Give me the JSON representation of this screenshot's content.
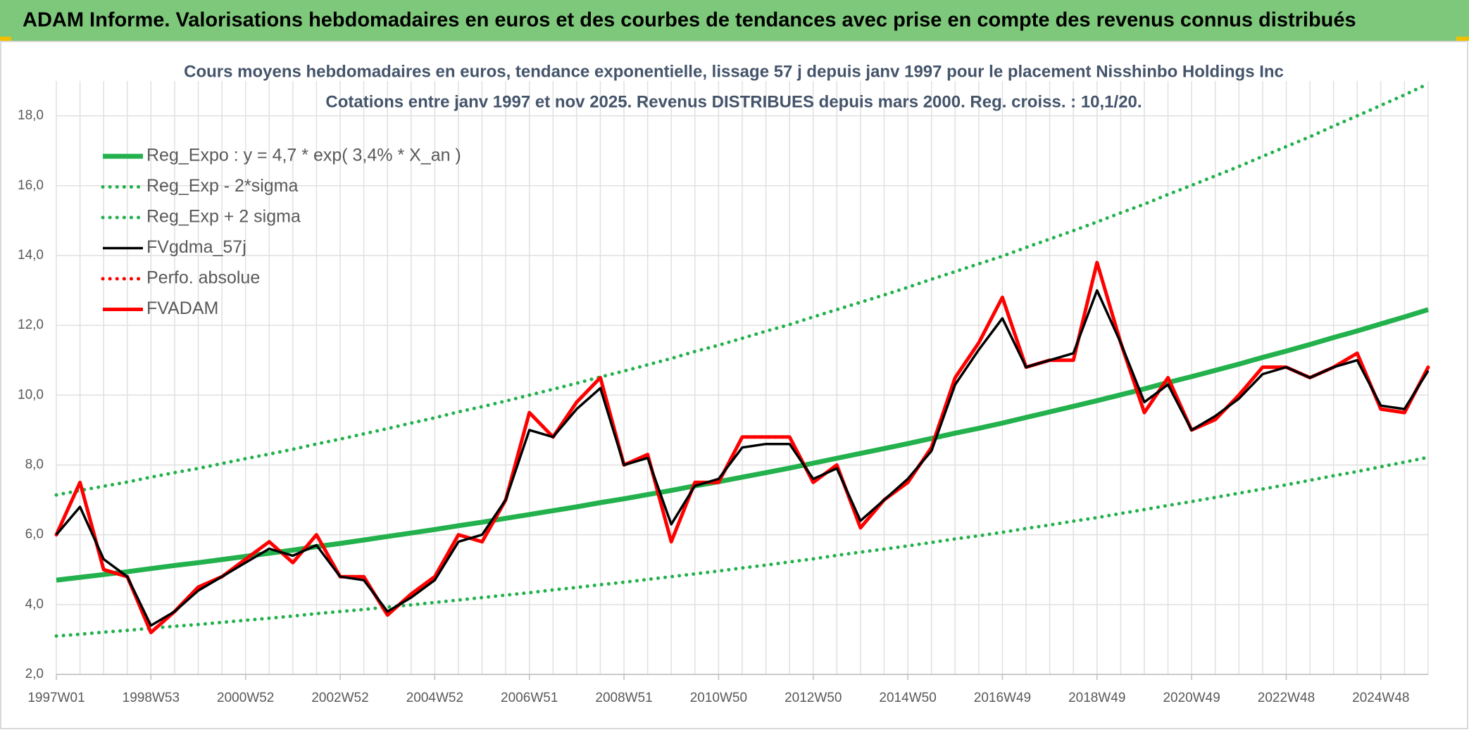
{
  "header": {
    "title": "ADAM Informe. Valorisations hebdomadaires en euros et des courbes de tendances avec prise en compte des revenus connus distribués"
  },
  "chart_data": {
    "type": "line",
    "title": "Cours moyens hebdomadaires en euros, tendance exponentielle, lissage 57 j depuis janv 1997 pour le placement Nisshinbo Holdings Inc",
    "subtitle": "Cotations entre janv 1997 et nov 2025. Revenus DISTRIBUES depuis mars 2000. Reg. croiss. : 10,1/20.",
    "categories": [
      "1997W01",
      null,
      null,
      null,
      "1998W53",
      null,
      null,
      null,
      "2000W52",
      null,
      null,
      null,
      "2002W52",
      null,
      null,
      null,
      "2004W52",
      null,
      null,
      null,
      "2006W51",
      null,
      null,
      null,
      "2008W51",
      null,
      null,
      null,
      "2010W50",
      null,
      null,
      null,
      "2012W50",
      null,
      null,
      null,
      "2014W50",
      null,
      null,
      null,
      "2016W49",
      null,
      null,
      null,
      "2018W49",
      null,
      null,
      null,
      "2020W49",
      null,
      null,
      null,
      "2022W48",
      null,
      null,
      null,
      "2024W48",
      null,
      null
    ],
    "ylim": [
      2,
      19
    ],
    "yticks": [
      {
        "value": 2,
        "label": "2,0"
      },
      {
        "value": 4,
        "label": "4,0"
      },
      {
        "value": 6,
        "label": "6,0"
      },
      {
        "value": 8,
        "label": "8,0"
      },
      {
        "value": 10,
        "label": "10,0"
      },
      {
        "value": 12,
        "label": "12,0"
      },
      {
        "value": 14,
        "label": "14,0"
      },
      {
        "value": 16,
        "label": "16,0"
      },
      {
        "value": 18,
        "label": "18,0"
      }
    ],
    "grid": true,
    "legend": "upper left",
    "series": [
      {
        "name": "Reg_Expo : y = 4,7 * exp( 3,4% *  X_an )",
        "color": "#22b14c",
        "style": "solid",
        "values": [
          4.7,
          4.78,
          4.86,
          4.94,
          5.03,
          5.12,
          5.2,
          5.29,
          5.38,
          5.47,
          5.56,
          5.66,
          5.75,
          5.85,
          5.95,
          6.05,
          6.15,
          6.26,
          6.36,
          6.47,
          6.58,
          6.69,
          6.8,
          6.92,
          7.03,
          7.15,
          7.27,
          7.4,
          7.52,
          7.65,
          7.78,
          7.91,
          8.05,
          8.19,
          8.33,
          8.47,
          8.61,
          8.76,
          8.91,
          9.05,
          9.2,
          9.36,
          9.52,
          9.68,
          9.84,
          10.01,
          10.18,
          10.36,
          10.53,
          10.71,
          10.89,
          11.08,
          11.26,
          11.45,
          11.65,
          11.84,
          12.04,
          12.24,
          12.45
        ]
      },
      {
        "name": "Reg_Exp - 2*sigma",
        "color": "#22b14c",
        "style": "dotted",
        "values": [
          3.1,
          3.15,
          3.21,
          3.26,
          3.32,
          3.38,
          3.43,
          3.49,
          3.55,
          3.61,
          3.67,
          3.74,
          3.8,
          3.86,
          3.93,
          3.99,
          4.06,
          4.13,
          4.2,
          4.27,
          4.34,
          4.42,
          4.49,
          4.57,
          4.64,
          4.72,
          4.8,
          4.88,
          4.96,
          5.05,
          5.13,
          5.22,
          5.31,
          5.41,
          5.5,
          5.59,
          5.68,
          5.78,
          5.88,
          5.97,
          6.07,
          6.18,
          6.28,
          6.39,
          6.49,
          6.61,
          6.72,
          6.84,
          6.95,
          7.07,
          7.19,
          7.31,
          7.43,
          7.56,
          7.69,
          7.81,
          7.95,
          8.08,
          8.22
        ]
      },
      {
        "name": "Reg_Exp + 2 sigma",
        "color": "#22b14c",
        "style": "dotted",
        "values": [
          7.14,
          7.27,
          7.39,
          7.51,
          7.65,
          7.78,
          7.9,
          8.04,
          8.18,
          8.31,
          8.45,
          8.6,
          8.74,
          8.89,
          9.04,
          9.2,
          9.35,
          9.52,
          9.67,
          9.83,
          10.0,
          10.17,
          10.34,
          10.52,
          10.69,
          10.87,
          11.05,
          11.25,
          11.43,
          11.63,
          11.83,
          12.02,
          12.24,
          12.45,
          12.66,
          12.87,
          13.09,
          13.32,
          13.54,
          13.76,
          13.98,
          14.23,
          14.47,
          14.71,
          14.96,
          15.22,
          15.47,
          15.75,
          16.01,
          16.28,
          16.55,
          16.84,
          17.12,
          17.4,
          17.71,
          18.0,
          18.3,
          18.6,
          18.92
        ]
      },
      {
        "name": "FVgdma_57j",
        "color": "#000000",
        "style": "solid",
        "values": [
          6.0,
          6.8,
          5.3,
          4.8,
          3.4,
          3.8,
          4.4,
          4.8,
          5.2,
          5.6,
          5.4,
          5.7,
          4.8,
          4.7,
          3.8,
          4.2,
          4.7,
          5.8,
          6.0,
          7.0,
          9.0,
          8.8,
          9.6,
          10.2,
          8.0,
          8.2,
          6.3,
          7.4,
          7.6,
          8.5,
          8.6,
          8.6,
          7.6,
          7.9,
          6.4,
          7.0,
          7.6,
          8.4,
          10.3,
          11.3,
          12.2,
          10.8,
          11.0,
          11.2,
          13.0,
          11.5,
          9.8,
          10.3,
          9.0,
          9.4,
          9.9,
          10.6,
          10.8,
          10.5,
          10.8,
          11.0,
          9.7,
          9.6,
          10.7
        ]
      },
      {
        "name": "Perfo. absolue",
        "color": "#ff0000",
        "style": "dotted",
        "values": [
          6.0,
          7.5,
          5.0,
          4.8,
          3.2,
          3.8,
          4.5,
          4.8,
          5.3,
          5.8,
          5.2,
          6.0,
          4.8,
          4.8,
          3.7,
          4.3,
          4.8,
          6.0,
          5.8,
          7.0,
          9.5,
          8.8,
          9.8,
          10.5,
          8.0,
          8.3,
          5.8,
          7.5,
          7.5,
          8.8,
          8.8,
          8.8,
          7.5,
          8.0,
          6.2,
          7.0,
          7.5,
          8.5,
          10.5,
          11.5,
          12.8,
          10.8,
          11.0,
          11.0,
          13.8,
          11.5,
          9.5,
          10.5,
          9.0,
          9.3,
          10.0,
          10.8,
          10.8,
          10.5,
          10.8,
          11.2,
          9.6,
          9.5,
          10.8
        ]
      },
      {
        "name": "FVADAM",
        "color": "#ff0000",
        "style": "solid",
        "values": [
          6.0,
          7.5,
          5.0,
          4.8,
          3.2,
          3.8,
          4.5,
          4.8,
          5.3,
          5.8,
          5.2,
          6.0,
          4.8,
          4.8,
          3.7,
          4.3,
          4.8,
          6.0,
          5.8,
          7.0,
          9.5,
          8.8,
          9.8,
          10.5,
          8.0,
          8.3,
          5.8,
          7.5,
          7.5,
          8.8,
          8.8,
          8.8,
          7.5,
          8.0,
          6.2,
          7.0,
          7.5,
          8.5,
          10.5,
          11.5,
          12.8,
          10.8,
          11.0,
          11.0,
          13.8,
          11.5,
          9.5,
          10.5,
          9.0,
          9.3,
          10.0,
          10.8,
          10.8,
          10.5,
          10.8,
          11.2,
          9.6,
          9.5,
          10.8
        ]
      }
    ]
  }
}
